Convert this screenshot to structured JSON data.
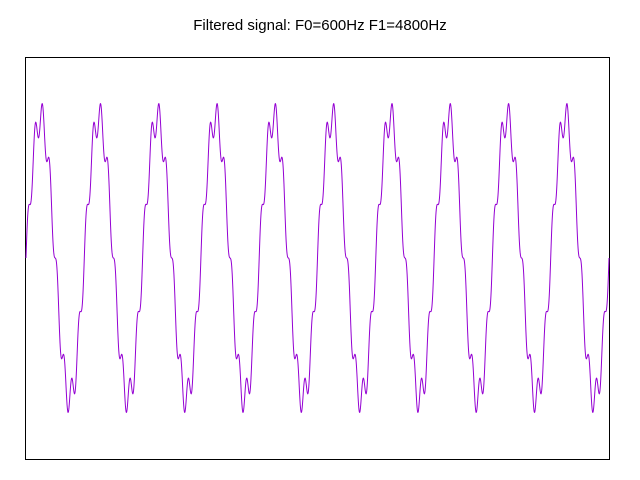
{
  "chart_data": {
    "type": "line",
    "title": "Filtered signal: F0=600Hz F1=4800Hz",
    "xlabel": "",
    "ylabel": "",
    "grid": false,
    "legend": "none",
    "series": [
      {
        "color": "#9400d3",
        "fundamental_hz": 600,
        "harmonic_hz": 4800,
        "cycles_shown": 10,
        "fundamental_amplitude": 1.0,
        "harmonic_amplitude": 0.12
      }
    ]
  }
}
